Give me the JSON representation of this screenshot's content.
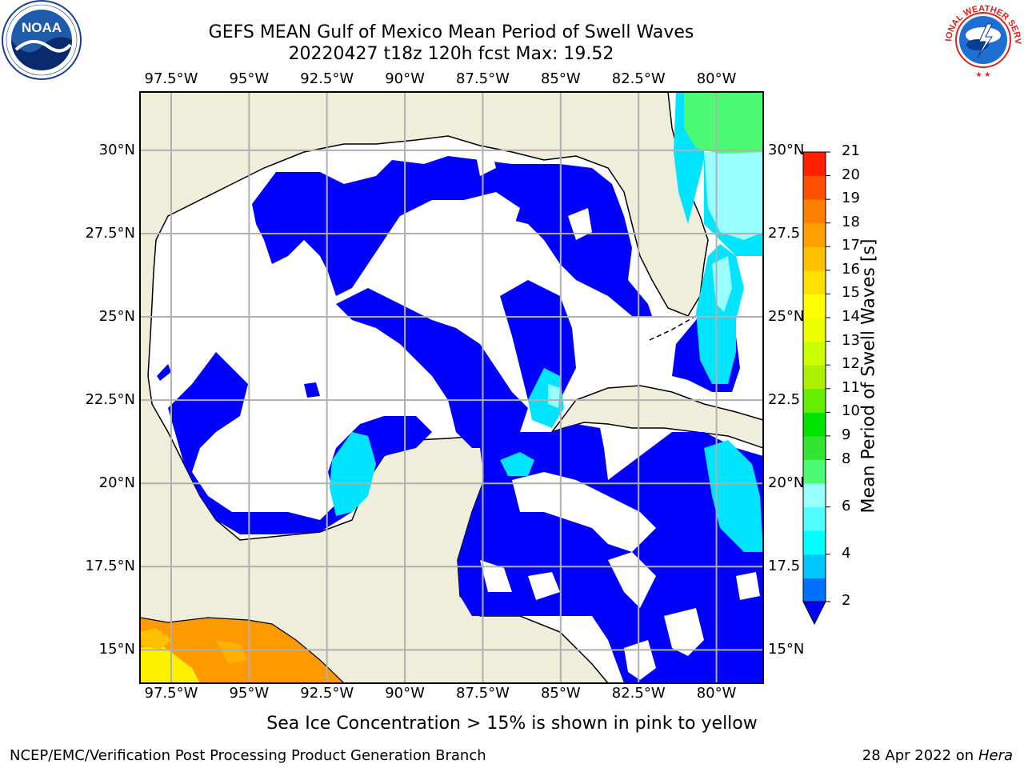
{
  "title": {
    "line1": "GEFS MEAN Gulf of Mexico Mean Period of Swell Waves",
    "line2": "20220427 t18z 120h fcst   Max: 19.52"
  },
  "map": {
    "lon_range": [
      -98.5,
      -78.5
    ],
    "lat_range": [
      14,
      31.75
    ],
    "lon_ticks": [
      {
        "value": -97.5,
        "label": "97.5°W"
      },
      {
        "value": -95,
        "label": "95°W"
      },
      {
        "value": -92.5,
        "label": "92.5°W"
      },
      {
        "value": -90,
        "label": "90°W"
      },
      {
        "value": -87.5,
        "label": "87.5°W"
      },
      {
        "value": -85,
        "label": "85°W"
      },
      {
        "value": -82.5,
        "label": "82.5°W"
      },
      {
        "value": -80,
        "label": "80°W"
      }
    ],
    "lat_ticks": [
      {
        "value": 15,
        "left": "15°N",
        "right": "15°N"
      },
      {
        "value": 17.5,
        "left": "17.5°N",
        "right": "17.5"
      },
      {
        "value": 20,
        "left": "20°N",
        "right": "20°N"
      },
      {
        "value": 22.5,
        "left": "22.5°N",
        "right": "22.5"
      },
      {
        "value": 25,
        "left": "25°N",
        "right": "25°N"
      },
      {
        "value": 27.5,
        "left": "27.5°N",
        "right": "27.5"
      },
      {
        "value": 30,
        "left": "30°N",
        "right": "30°N"
      }
    ],
    "colors": {
      "land": "#efeedb",
      "ocean": "#ffffff",
      "swell_2_4": "#0000ff",
      "swell_4_6": "#00e4ff",
      "swell_8_9": "#99ffff",
      "swell_9_10": "#4dfa73",
      "sea_ice_orange": "#ff9900",
      "sea_ice_yellow": "#fff000",
      "grid": "#b0b0b0"
    }
  },
  "colorbar": {
    "label": "Mean Period of Swell Waves [s]",
    "levels": [
      2,
      3,
      4,
      5,
      6,
      7,
      8,
      9,
      10,
      11,
      12,
      13,
      14,
      15,
      16,
      17,
      18,
      19,
      20,
      21
    ],
    "tick_labels": [
      "2",
      "4",
      "6",
      "8",
      "9",
      "10",
      "11",
      "12",
      "13",
      "14",
      "15",
      "16",
      "17",
      "18",
      "19",
      "20",
      "21"
    ],
    "colors": [
      "#0070ff",
      "#00c8ff",
      "#00ffff",
      "#4dffff",
      "#99ffff",
      "#4dfa73",
      "#33e533",
      "#00e400",
      "#66ee00",
      "#aaf000",
      "#ccff00",
      "#eeff00",
      "#ffff00",
      "#ffe000",
      "#ffc000",
      "#ffa000",
      "#ff7f00",
      "#ff5000",
      "#ff2000",
      "#ff0000"
    ],
    "extend_color": "#0000ff"
  },
  "logos": {
    "noaa": {
      "text": "NOAA",
      "ring": "NATIONAL OCEANIC AND ATMOSPHERIC ADMINISTRATION · U.S. DEPARTMENT OF COMMERCE"
    },
    "nws": {
      "ring": "NATIONAL WEATHER SERVICE"
    }
  },
  "note": "Sea Ice Concentration > 15% is shown in pink to yellow",
  "footer": {
    "left": "NCEP/EMC/Verification Post Processing Product Generation Branch",
    "right_date": "28 Apr 2022 on ",
    "right_host": "Hera"
  }
}
